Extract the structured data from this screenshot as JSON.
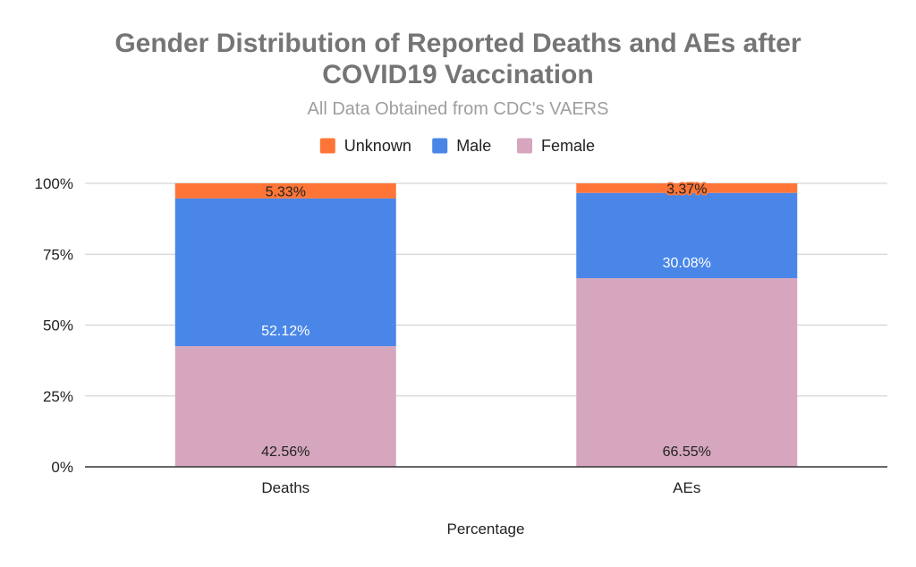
{
  "chart_data": {
    "type": "bar",
    "stacked": true,
    "title_lines": [
      "Gender Distribution of Reported Deaths and AEs after",
      "COVID19 Vaccination"
    ],
    "subtitle": "All Data Obtained from CDC's VAERS",
    "xlabel": "Percentage",
    "ylabel": "",
    "categories": [
      "Deaths",
      "AEs"
    ],
    "y_ticks": [
      "0%",
      "25%",
      "50%",
      "75%",
      "100%"
    ],
    "ylim": [
      0,
      100
    ],
    "legend_position": "top",
    "series": [
      {
        "name": "Female",
        "color": "#d5a6bd",
        "label_color": "#222222",
        "values": [
          42.56,
          66.55
        ],
        "labels": [
          "42.56%",
          "66.55%"
        ]
      },
      {
        "name": "Male",
        "color": "#4a86e8",
        "label_color": "#ffffff",
        "values": [
          52.12,
          30.08
        ],
        "labels": [
          "52.12%",
          "30.08%"
        ]
      },
      {
        "name": "Unknown",
        "color": "#ff7537",
        "label_color": "#222222",
        "values": [
          5.33,
          3.37
        ],
        "labels": [
          "5.33%",
          "3.37%"
        ]
      }
    ],
    "legend_order": [
      "Unknown",
      "Male",
      "Female"
    ]
  },
  "colors": {
    "title": "#757575",
    "subtitle": "#9e9e9e",
    "grid": "#cccccc",
    "axis": "#333333"
  }
}
